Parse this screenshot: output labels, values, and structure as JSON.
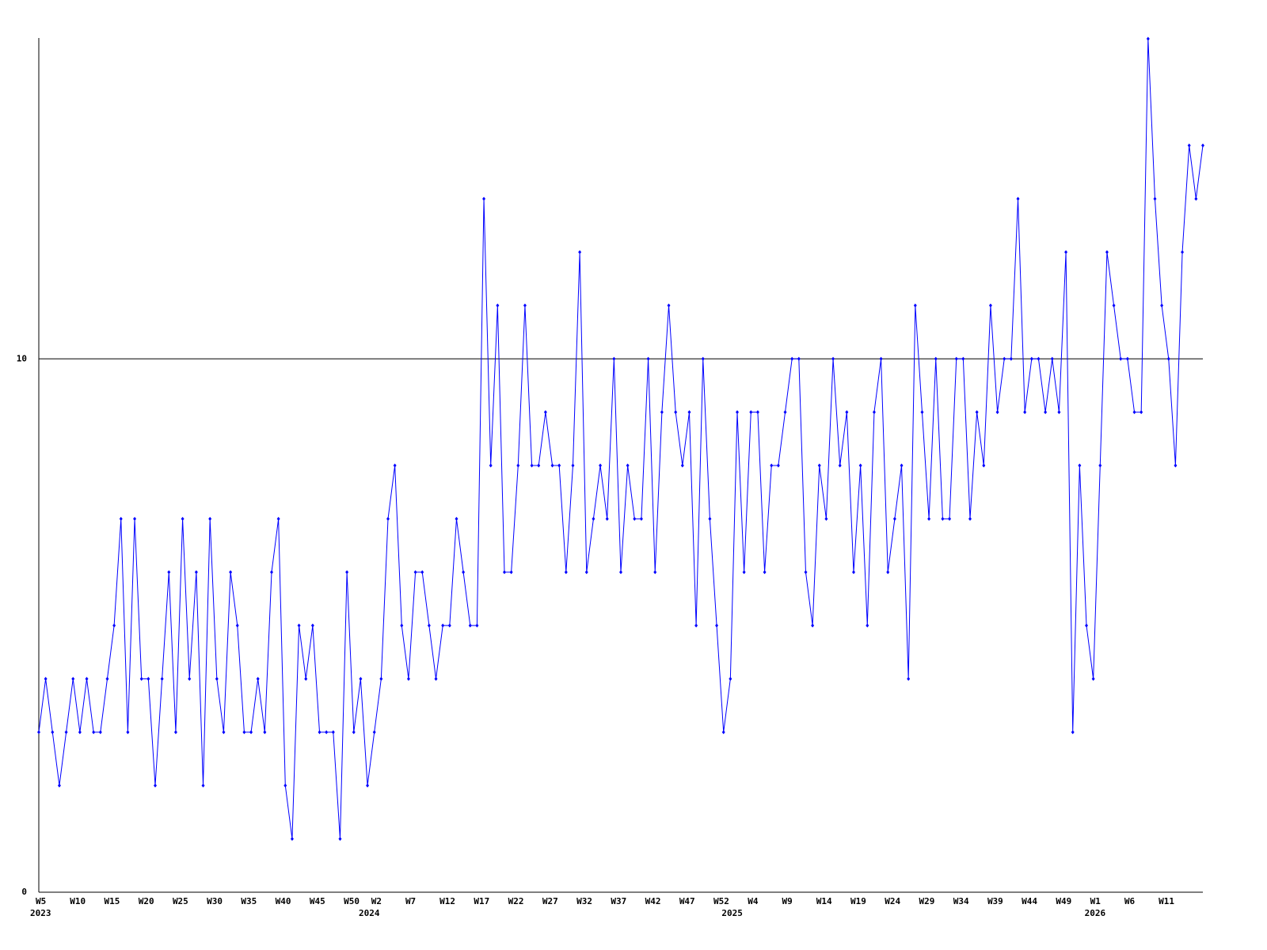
{
  "chart_data": {
    "type": "line",
    "categories": [
      "W5",
      null,
      null,
      null,
      null,
      "W10",
      null,
      null,
      null,
      null,
      "W15",
      null,
      null,
      null,
      null,
      "W20",
      null,
      null,
      null,
      null,
      "W25",
      null,
      null,
      null,
      null,
      "W30",
      null,
      null,
      null,
      null,
      "W35",
      null,
      null,
      null,
      null,
      "W40",
      null,
      null,
      null,
      null,
      "W45",
      null,
      null,
      null,
      null,
      "W50",
      null,
      null,
      null,
      "W2",
      null,
      null,
      null,
      null,
      "W7",
      null,
      null,
      null,
      null,
      "W12",
      null,
      null,
      null,
      null,
      "W17",
      null,
      null,
      null,
      null,
      "W22",
      null,
      null,
      null,
      null,
      "W27",
      null,
      null,
      null,
      null,
      "W32",
      null,
      null,
      null,
      null,
      "W37",
      null,
      null,
      null,
      null,
      "W42",
      null,
      null,
      null,
      null,
      "W47",
      null,
      null,
      null,
      null,
      "W52",
      null,
      null,
      null,
      null,
      "W4",
      null,
      null,
      null,
      null,
      "W9",
      null,
      null,
      null,
      null,
      "W14",
      null,
      null,
      null,
      null,
      "W19",
      null,
      null,
      null,
      null,
      "W24",
      null,
      null,
      null,
      null,
      "W29",
      null,
      null,
      null,
      null,
      "W34",
      null,
      null,
      null,
      null,
      "W39",
      null,
      null,
      null,
      null,
      "W44",
      null,
      null,
      null,
      null,
      "W49",
      null,
      null,
      null,
      null,
      "W1",
      null,
      null,
      null,
      null,
      "W6",
      null,
      null,
      null,
      null,
      "W11",
      null,
      null,
      null,
      null,
      null,
      null
    ],
    "years": [
      "2023",
      null,
      null,
      null,
      null,
      null,
      null,
      null,
      null,
      null,
      null,
      null,
      null,
      null,
      null,
      null,
      null,
      null,
      null,
      null,
      null,
      null,
      null,
      null,
      null,
      null,
      null,
      null,
      null,
      null,
      null,
      null,
      null,
      null,
      null,
      null,
      null,
      null,
      null,
      null,
      null,
      null,
      null,
      null,
      null,
      null,
      null,
      null,
      "2024",
      null,
      null,
      null,
      null,
      null,
      null,
      null,
      null,
      null,
      null,
      null,
      null,
      null,
      null,
      null,
      null,
      null,
      null,
      null,
      null,
      null,
      null,
      null,
      null,
      null,
      null,
      null,
      null,
      null,
      null,
      null,
      null,
      null,
      null,
      null,
      null,
      null,
      null,
      null,
      null,
      null,
      null,
      null,
      null,
      null,
      null,
      null,
      null,
      null,
      null,
      null,
      null,
      "2025",
      null,
      null,
      null,
      null,
      null,
      null,
      null,
      null,
      null,
      null,
      null,
      null,
      null,
      null,
      null,
      null,
      null,
      null,
      null,
      null,
      null,
      null,
      null,
      null,
      null,
      null,
      null,
      null,
      null,
      null,
      null,
      null,
      null,
      null,
      null,
      null,
      null,
      null,
      null,
      null,
      null,
      null,
      null,
      null,
      null,
      null,
      null,
      null,
      null,
      null,
      null,
      null,
      "2026",
      null,
      null,
      null,
      null,
      null,
      null,
      null,
      null,
      null,
      null,
      null,
      null,
      null,
      null,
      null,
      null
    ],
    "values": [
      3,
      4,
      3,
      2,
      3,
      4,
      3,
      4,
      3,
      3,
      4,
      5,
      7,
      3,
      7,
      4,
      4,
      2,
      4,
      6,
      3,
      7,
      4,
      6,
      2,
      7,
      4,
      3,
      6,
      5,
      3,
      3,
      4,
      3,
      6,
      7,
      2,
      1,
      5,
      4,
      5,
      3,
      3,
      3,
      1,
      6,
      3,
      4,
      2,
      3,
      4,
      7,
      8,
      5,
      4,
      6,
      6,
      5,
      4,
      5,
      5,
      7,
      6,
      5,
      5,
      13,
      8,
      11,
      6,
      6,
      8,
      11,
      8,
      8,
      9,
      8,
      8,
      6,
      8,
      12,
      6,
      7,
      8,
      7,
      10,
      6,
      8,
      7,
      7,
      10,
      6,
      9,
      11,
      9,
      8,
      9,
      5,
      10,
      7,
      5,
      3,
      4,
      9,
      6,
      9,
      9,
      6,
      8,
      8,
      9,
      10,
      10,
      6,
      5,
      8,
      7,
      10,
      8,
      9,
      6,
      8,
      5,
      9,
      10,
      6,
      7,
      8,
      4,
      11,
      9,
      7,
      10,
      7,
      7,
      10,
      10,
      7,
      9,
      8,
      11,
      9,
      10,
      10,
      13,
      9,
      10,
      10,
      9,
      10,
      9,
      12,
      3,
      8,
      5,
      4,
      8,
      12,
      11,
      10,
      10,
      9,
      9,
      16,
      13,
      11,
      10,
      8,
      12,
      14,
      13,
      14
    ],
    "color": "#0000ff",
    "ylim": [
      0,
      16
    ],
    "yticks": [
      0,
      10
    ],
    "grid": true
  }
}
